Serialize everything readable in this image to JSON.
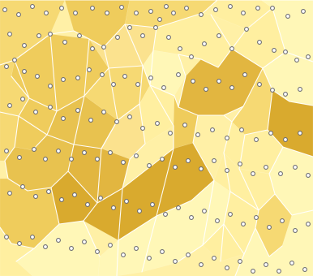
{
  "map": {
    "kind": "parcel-map",
    "interactive": false,
    "colors": {
      "background": "#fff0a6",
      "road": "#ffffff",
      "node_fill": "#ffffff",
      "node_stroke": "#6b6b72",
      "palette": {
        "light_1": "#fff7b7",
        "light_2": "#ffefa0",
        "light_3": "#fbe28e",
        "mid_1": "#f6d973",
        "mid_2": "#efcc5b",
        "mid_3": "#e8c24f",
        "dark_1": "#e2b63f",
        "dark_2": "#d9aa2f"
      }
    }
  }
}
